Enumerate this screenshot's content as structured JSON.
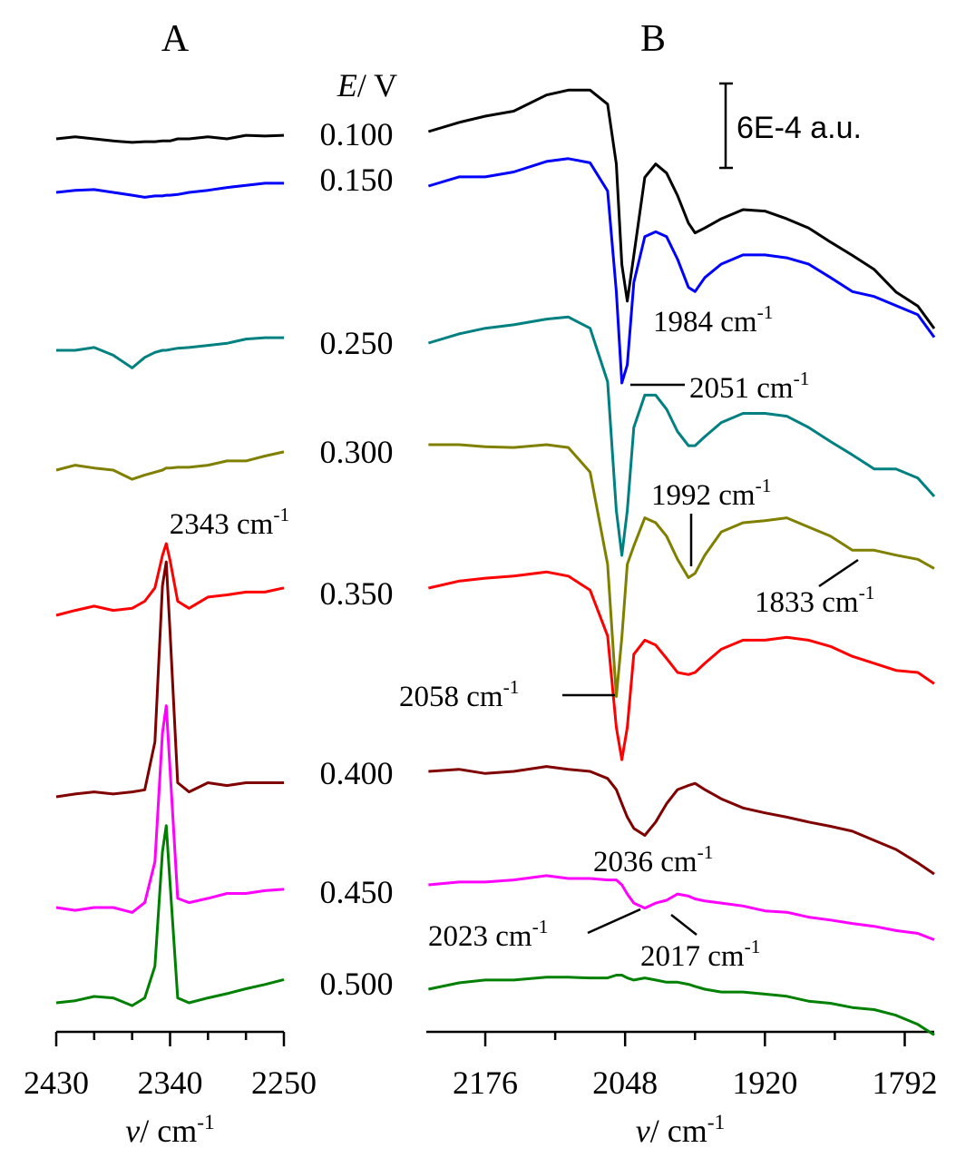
{
  "chart_data": [
    {
      "type": "line",
      "title": "A",
      "xlabel": {
        "symbol": "ν",
        "unit": "/ cm",
        "sup": "-1"
      },
      "xlim": [
        2430,
        2250
      ],
      "xticks": [
        2430,
        2340,
        2250
      ],
      "xminorticks": [
        2400,
        2370,
        2310,
        2280
      ],
      "annotations": [
        {
          "text": "2343 cm",
          "sup": "-1"
        }
      ],
      "x": [
        2430,
        2415,
        2400,
        2385,
        2370,
        2360,
        2352,
        2346,
        2343,
        2340,
        2334,
        2325,
        2310,
        2295,
        2280,
        2265,
        2250
      ],
      "series": [
        {
          "color": "#000000",
          "values": [
            0,
            1.5e-05,
            0,
            -1.5e-05,
            -2.5e-05,
            -2e-05,
            -2e-05,
            -1.5e-05,
            -1.5e-05,
            -1.5e-05,
            0,
            0,
            1.5e-05,
            0,
            2.5e-05,
            2e-05,
            2.5e-05
          ]
        },
        {
          "color": "#0000ff",
          "values": [
            0,
            1.5e-05,
            2e-05,
            0,
            -2e-05,
            -3.5e-05,
            -2.5e-05,
            -2.5e-05,
            -2e-05,
            -2e-05,
            -1.5e-05,
            0,
            1.5e-05,
            3.5e-05,
            5e-05,
            6.5e-05,
            6.5e-05
          ]
        },
        {
          "color": "#008080",
          "values": [
            0,
            0,
            2e-05,
            -3.5e-05,
            -0.000125,
            -5e-05,
            -1.5e-05,
            0,
            0,
            5e-06,
            1.5e-05,
            2e-05,
            3.5e-05,
            5e-05,
            8e-05,
            9e-05,
            9e-05
          ]
        },
        {
          "color": "#808000",
          "values": [
            0,
            3.5e-05,
            1.5e-05,
            0,
            -6.5e-05,
            -3.5e-05,
            -1.5e-05,
            0,
            1.5e-05,
            1.5e-05,
            2e-05,
            2e-05,
            3.5e-05,
            6.5e-05,
            6.5e-05,
            0.0001,
            0.00013
          ]
        },
        {
          "color": "#ff0000",
          "values": [
            0,
            3.5e-05,
            6.5e-05,
            3.5e-05,
            5e-05,
            0.0001,
            0.000195,
            0.000425,
            0.00051,
            0.00039,
            0.0001,
            5e-05,
            0.00013,
            0.000145,
            0.000165,
            0.000165,
            0.000195
          ]
        },
        {
          "color": "#800000",
          "values": [
            0,
            2e-05,
            3.5e-05,
            2e-05,
            3.5e-05,
            5e-05,
            0.00039,
            0.0015,
            0.00167,
            0.00117,
            0.0001,
            3.5e-05,
            0.0001,
            8e-05,
            0.0001,
            0.0001,
            0.0001
          ]
        },
        {
          "color": "#ff00ff",
          "values": [
            0,
            -2e-05,
            0,
            0,
            -3.5e-05,
            3.5e-05,
            0.000325,
            0.00124,
            0.001435,
            0.00098,
            6.5e-05,
            3.5e-05,
            6.5e-05,
            0.0001,
            0.0001,
            0.00012,
            0.00013
          ]
        },
        {
          "color": "#008000",
          "values": [
            0,
            1.5e-05,
            4.5e-05,
            3.5e-05,
            -2e-05,
            3.5e-05,
            0.00026,
            0.001075,
            0.00126,
            0.00085,
            3.5e-05,
            0,
            3.5e-05,
            6.5e-05,
            0.0001,
            0.00013,
            0.000165
          ]
        }
      ]
    },
    {
      "type": "line",
      "title": "B",
      "xlabel": {
        "symbol": "ν",
        "unit": "/ cm",
        "sup": "-1"
      },
      "legend_title": {
        "symbol": "E",
        "unit": "/ V"
      },
      "scale_bar": {
        "label": "6E-4 a.u.",
        "value": 0.0006
      },
      "xlim": [
        2230,
        1765
      ],
      "xticks": [
        2176,
        2048,
        1920,
        1792
      ],
      "xminorticks": [
        2112,
        1984,
        1856
      ],
      "annotations": [
        {
          "text": "1984 cm",
          "sup": "-1"
        },
        {
          "text": "2051 cm",
          "sup": "-1"
        },
        {
          "text": "1992 cm",
          "sup": "-1"
        },
        {
          "text": "1833 cm",
          "sup": "-1"
        },
        {
          "text": "2058 cm",
          "sup": "-1"
        },
        {
          "text": "2036 cm",
          "sup": "-1"
        },
        {
          "text": "2023 cm",
          "sup": "-1"
        },
        {
          "text": "2017 cm",
          "sup": "-1"
        }
      ],
      "x": [
        2228,
        2200,
        2176,
        2150,
        2120,
        2100,
        2080,
        2064,
        2056,
        2051,
        2046,
        2040,
        2030,
        2020,
        2010,
        2000,
        1990,
        1984,
        1975,
        1960,
        1940,
        1920,
        1900,
        1880,
        1860,
        1840,
        1820,
        1800,
        1780,
        1765
      ],
      "series": [
        {
          "name": "0.100",
          "color": "#000000",
          "values": [
            0,
            6.5e-05,
            0.00011,
            0.000145,
            0.00026,
            0.000295,
            0.000295,
            0.000195,
            -0.00023,
            -0.000945,
            -0.001205,
            -0.00088,
            -0.000325,
            -0.00023,
            -0.000295,
            -0.000455,
            -0.00065,
            -0.00072,
            -0.000685,
            -0.00062,
            -0.000555,
            -0.000565,
            -0.00062,
            -0.000685,
            -0.000785,
            -0.00088,
            -0.00098,
            -0.00114,
            -0.00124,
            -0.0014
          ]
        },
        {
          "name": "0.150",
          "color": "#0000ff",
          "values": [
            0,
            6.5e-05,
            6.5e-05,
            0.0001,
            0.000175,
            0.000195,
            0.000165,
            -3.5e-05,
            -0.00075,
            -0.0014,
            -0.00127,
            -0.000685,
            -0.00036,
            -0.000325,
            -0.00036,
            -0.00052,
            -0.00072,
            -0.00075,
            -0.00065,
            -0.000555,
            -0.00049,
            -0.00049,
            -0.00051,
            -0.000555,
            -0.00065,
            -0.00075,
            -0.000785,
            -0.00085,
            -0.000915,
            -0.001075
          ]
        },
        {
          "name": "0.250",
          "color": "#008080",
          "values": [
            0,
            6.5e-05,
            0.000105,
            0.00013,
            0.00017,
            0.000185,
            0.000105,
            -0.000275,
            -0.00119,
            -0.00151,
            -0.00119,
            -0.0006,
            -0.00037,
            -0.00037,
            -0.00047,
            -0.00063,
            -0.00073,
            -0.00073,
            -0.000665,
            -0.000565,
            -0.0005,
            -0.0005,
            -0.00052,
            -0.0006,
            -0.0007,
            -0.000795,
            -0.000895,
            -0.000895,
            -0.00096,
            -0.00109
          ]
        },
        {
          "name": "0.300",
          "color": "#808000",
          "values": [
            0,
            0,
            -1.5e-05,
            -2e-05,
            0,
            -2e-05,
            -0.000195,
            -0.00085,
            -0.00179,
            -0.00137,
            -0.00085,
            -0.00072,
            -0.00052,
            -0.000555,
            -0.00065,
            -0.000815,
            -0.000945,
            -0.000915,
            -0.000785,
            -0.00062,
            -0.000555,
            -0.00054,
            -0.00052,
            -0.000585,
            -0.00065,
            -0.00075,
            -0.00075,
            -0.000785,
            -0.000815,
            -0.00088
          ]
        },
        {
          "name": "0.350",
          "color": "#ff0000",
          "values": [
            0,
            5e-05,
            7e-05,
            8.5e-05,
            0.000115,
            8.5e-05,
            -1.5e-05,
            -0.00034,
            -0.00099,
            -0.00122,
            -0.00099,
            -0.00047,
            -0.00037,
            -0.000405,
            -0.0005,
            -0.0006,
            -0.000615,
            -0.0006,
            -0.000535,
            -0.000435,
            -0.00037,
            -0.00037,
            -0.00035,
            -0.00037,
            -0.000415,
            -0.000485,
            -0.000535,
            -0.000585,
            -0.0006,
            -0.00068
          ]
        },
        {
          "name": "0.400",
          "color": "#800000",
          "values": [
            0,
            1.5e-05,
            -1.5e-05,
            0,
            3.5e-05,
            1.5e-05,
            0,
            -5e-05,
            -0.00013,
            -0.00023,
            -0.000325,
            -0.000405,
            -0.000455,
            -0.00036,
            -0.00023,
            -0.00013,
            -0.0001,
            -8.5e-05,
            -0.00013,
            -0.000195,
            -0.00026,
            -0.000295,
            -0.000325,
            -0.00036,
            -0.00039,
            -0.000425,
            -0.00049,
            -0.000555,
            -0.00065,
            -0.00073
          ]
        },
        {
          "name": "0.450",
          "color": "#ff00ff",
          "values": [
            0,
            2e-05,
            2e-05,
            3.5e-05,
            6.5e-05,
            4.5e-05,
            4.5e-05,
            3.5e-05,
            3.5e-05,
            0,
            -6.5e-05,
            -0.00013,
            -0.000165,
            -0.00013,
            -0.00011,
            -6.5e-05,
            -8e-05,
            -0.0001,
            -0.000115,
            -0.00013,
            -0.00015,
            -0.000185,
            -0.000195,
            -0.00023,
            -0.00025,
            -0.000275,
            -0.000295,
            -0.000325,
            -0.000345,
            -0.00039
          ]
        },
        {
          "name": "0.500",
          "color": "#008000",
          "values": [
            0,
            4.5e-05,
            6.5e-05,
            6.5e-05,
            8.5e-05,
            8.5e-05,
            8e-05,
            8e-05,
            0.0001,
            0.0001,
            8e-05,
            6.5e-05,
            8e-05,
            6.5e-05,
            5e-05,
            5e-05,
            3.5e-05,
            2e-05,
            0,
            -2e-05,
            -2e-05,
            -3.5e-05,
            -5e-05,
            -8.5e-05,
            -0.0001,
            -0.00013,
            -0.000145,
            -0.000185,
            -0.00025,
            -0.000325
          ]
        }
      ]
    }
  ]
}
